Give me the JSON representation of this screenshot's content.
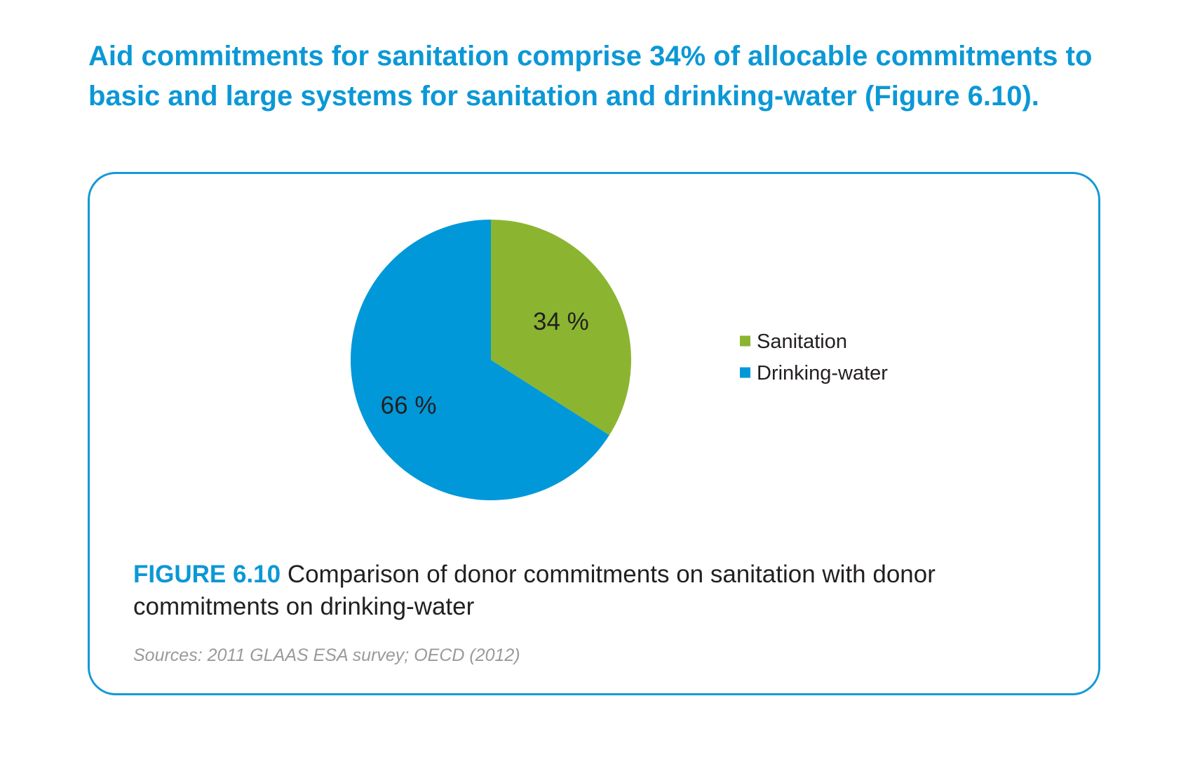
{
  "headline": "Aid commitments for sanitation comprise 34% of allocable commitments to basic and large systems for sanitation and drinking-water (Figure 6.10).",
  "figure": {
    "number": "FIGURE 6.10",
    "caption": "Comparison of donor commitments on sanitation with donor commitments on drinking-water",
    "source": "Sources: 2011 GLAAS ESA survey; OECD (2012)"
  },
  "chart_data": {
    "type": "pie",
    "categories": [
      "Sanitation",
      "Drinking-water"
    ],
    "values": [
      34,
      66
    ],
    "labels": [
      "34 %",
      "66 %"
    ],
    "colors": [
      "#8bb530",
      "#0098d8"
    ],
    "legend": "right",
    "start_angle": "12 o'clock, clockwise"
  }
}
